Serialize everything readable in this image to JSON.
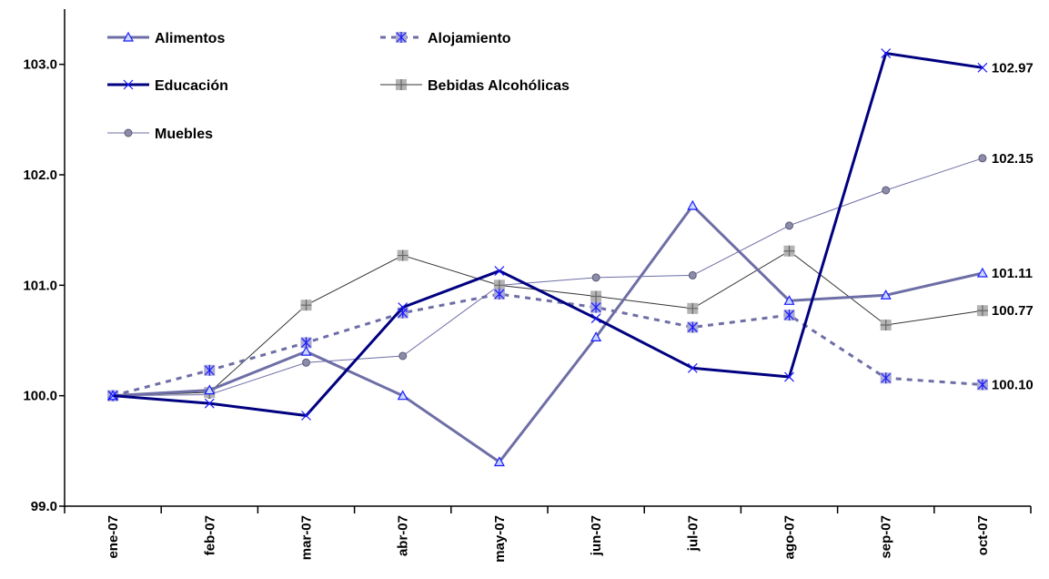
{
  "chart_data": {
    "type": "line",
    "categories": [
      "ene-07",
      "feb-07",
      "mar-07",
      "abr-07",
      "may-07",
      "jun-07",
      "jul-07",
      "ago-07",
      "sep-07",
      "oct-07"
    ],
    "ylim": [
      99.0,
      103.5
    ],
    "yticks": [
      99.0,
      100.0,
      101.0,
      102.0,
      103.0
    ],
    "ytick_labels": [
      "99.0",
      "100.0",
      "101.0",
      "102.0",
      "103.0"
    ],
    "grid": false,
    "legend_position": "top-left",
    "series": [
      {
        "name": "Alimentos",
        "color": "#6e6ea6",
        "stroke_width": 3,
        "dash": "",
        "marker": "triangle",
        "marker_fill": "#c8d8ff",
        "marker_stroke": "#1a1aff",
        "values": [
          100.0,
          100.05,
          100.4,
          100.0,
          99.4,
          100.53,
          101.72,
          100.86,
          100.91,
          101.11
        ],
        "end_label": "101.11"
      },
      {
        "name": "Alojamiento",
        "color": "#6e6ea6",
        "stroke_width": 3,
        "dash": "6,6",
        "marker": "asterisk-square",
        "marker_fill": "#a9a9d6",
        "marker_stroke": "#1a1aff",
        "values": [
          100.0,
          100.23,
          100.48,
          100.75,
          100.92,
          100.8,
          100.62,
          100.73,
          100.16,
          100.1
        ],
        "end_label": "100.10"
      },
      {
        "name": "Educación",
        "color": "#000080",
        "stroke_width": 3,
        "dash": "",
        "marker": "x",
        "marker_fill": "none",
        "marker_stroke": "#1a1aff",
        "values": [
          100.0,
          99.93,
          99.82,
          100.8,
          101.13,
          100.7,
          100.25,
          100.17,
          103.1,
          102.97
        ],
        "end_label": "102.97"
      },
      {
        "name": "Bebidas Alcohólicas",
        "color": "#333333",
        "stroke_width": 1,
        "dash": "",
        "marker": "plus-square",
        "marker_fill": "#b3b3b3",
        "marker_stroke": "#666666",
        "values": [
          100.0,
          100.03,
          100.82,
          101.27,
          101.0,
          100.9,
          100.79,
          101.31,
          100.64,
          100.77
        ],
        "end_label": "100.77"
      },
      {
        "name": "Muebles",
        "color": "#6e6ea6",
        "stroke_width": 1,
        "dash": "",
        "marker": "circle",
        "marker_fill": "#8c8ca8",
        "marker_stroke": "#5a5a7a",
        "values": [
          100.0,
          100.01,
          100.3,
          100.36,
          101.0,
          101.07,
          101.09,
          101.54,
          101.86,
          102.15
        ],
        "end_label": "102.15"
      }
    ]
  }
}
